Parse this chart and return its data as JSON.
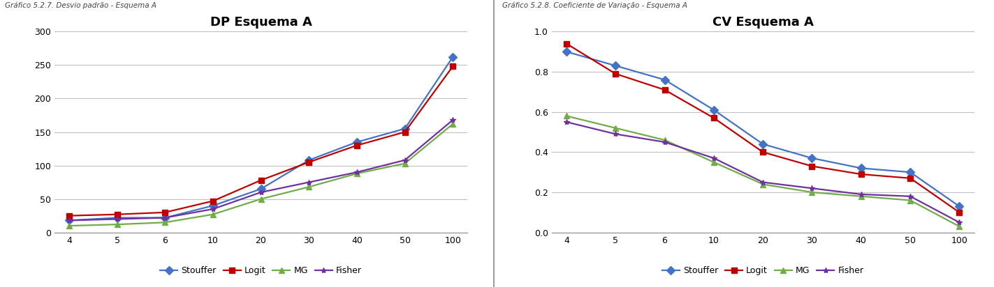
{
  "x_labels": [
    "4",
    "5",
    "6",
    "10",
    "20",
    "30",
    "40",
    "50",
    "100"
  ],
  "dp": {
    "Stouffer": [
      18,
      22,
      22,
      40,
      65,
      108,
      135,
      155,
      262
    ],
    "Logit": [
      25,
      27,
      30,
      47,
      78,
      105,
      130,
      150,
      248
    ],
    "MG": [
      10,
      12,
      15,
      27,
      50,
      68,
      88,
      103,
      162
    ],
    "Fisher": [
      18,
      20,
      22,
      35,
      60,
      75,
      90,
      108,
      168
    ]
  },
  "cv": {
    "Stouffer": [
      0.9,
      0.83,
      0.76,
      0.61,
      0.44,
      0.37,
      0.32,
      0.3,
      0.13
    ],
    "Logit": [
      0.94,
      0.79,
      0.71,
      0.57,
      0.4,
      0.33,
      0.29,
      0.27,
      0.1
    ],
    "MG": [
      0.58,
      0.52,
      0.46,
      0.35,
      0.24,
      0.2,
      0.18,
      0.16,
      0.03
    ],
    "Fisher": [
      0.55,
      0.49,
      0.45,
      0.37,
      0.25,
      0.22,
      0.19,
      0.18,
      0.05
    ]
  },
  "colors": {
    "Stouffer": "#4472C4",
    "Logit": "#C00000",
    "MG": "#70AD47",
    "Fisher": "#7030A0"
  },
  "markers": {
    "Stouffer": "D",
    "Logit": "s",
    "MG": "^",
    "Fisher": "*"
  },
  "title_dp": "DP Esquema A",
  "title_cv": "CV Esquema A",
  "dp_ylim": [
    0,
    300
  ],
  "dp_yticks": [
    0,
    50,
    100,
    150,
    200,
    250,
    300
  ],
  "cv_ylim": [
    0.0,
    1.0
  ],
  "cv_yticks": [
    0.0,
    0.2,
    0.4,
    0.6,
    0.8,
    1.0
  ],
  "series_order": [
    "Stouffer",
    "Logit",
    "MG",
    "Fisher"
  ],
  "bg_color": "#FFFFFF",
  "header_text1": "Gráfico 5.2.7. Desvio padrão - Esquema A",
  "header_text2": "Gráfico 5.2.8. Coeficiente de Variação - Esquema A"
}
